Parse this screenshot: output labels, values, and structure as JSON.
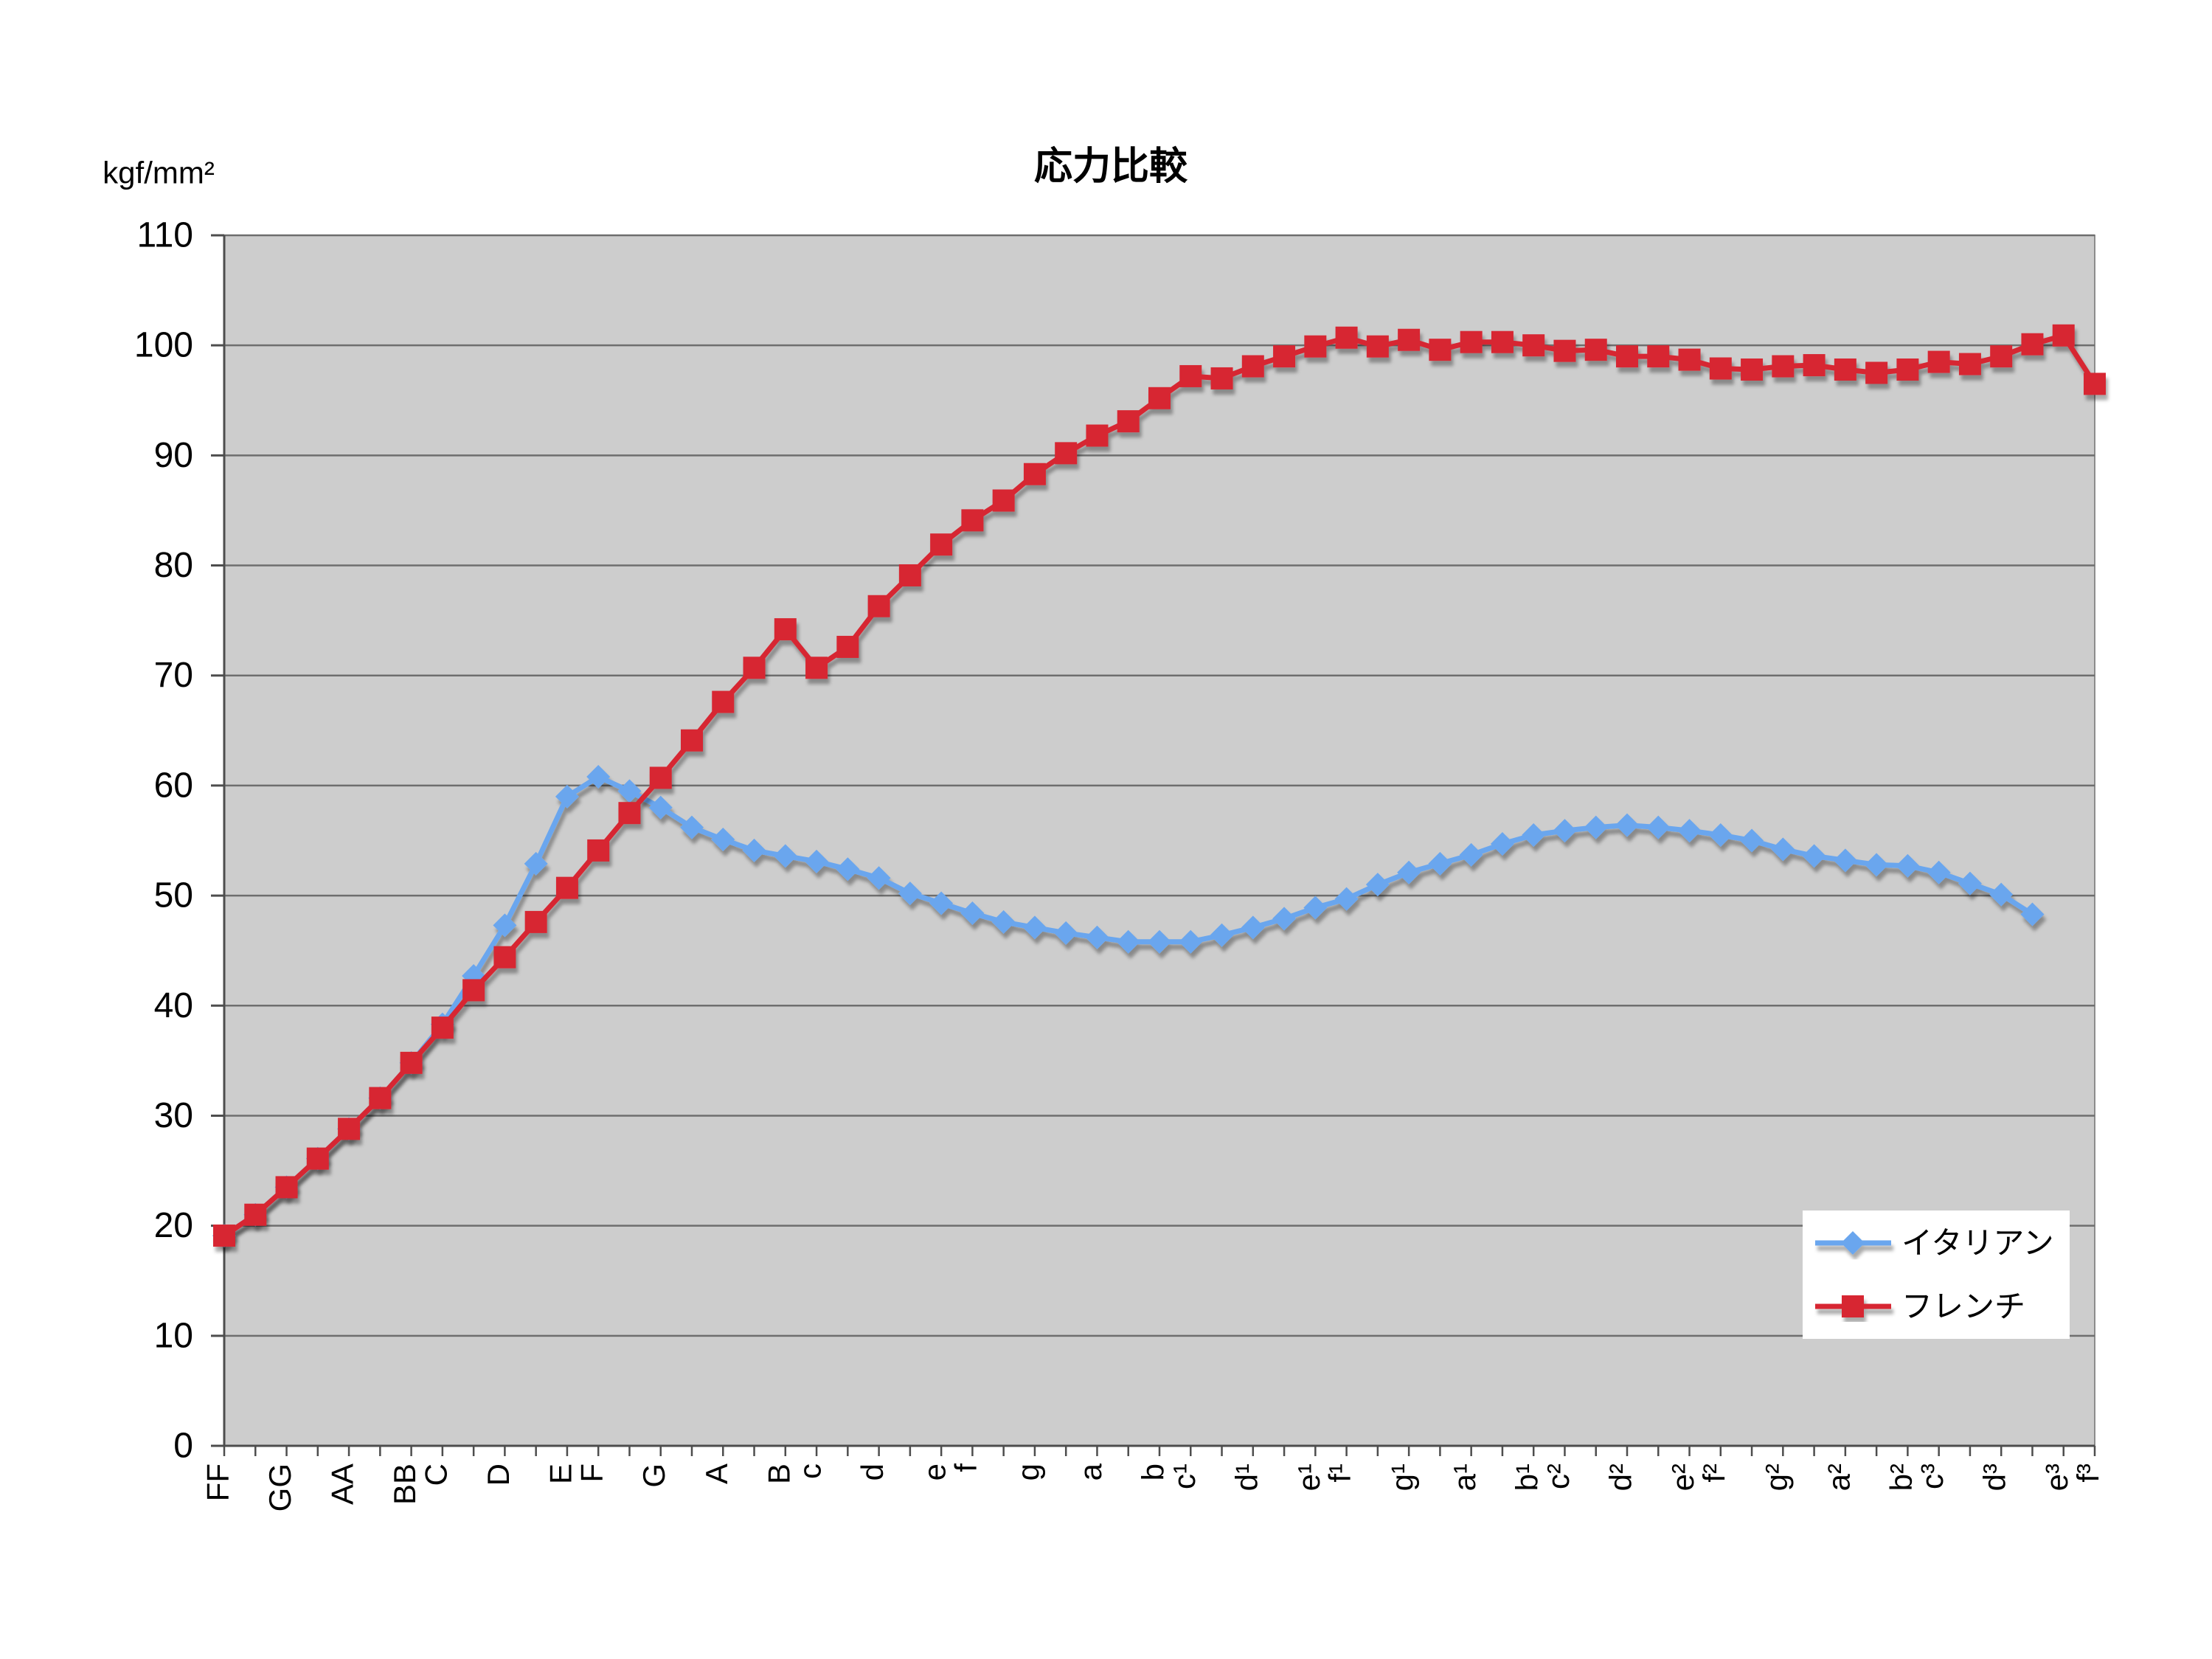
{
  "chart_data": {
    "type": "line",
    "title": "応力比較",
    "ylabel": "kgf/mm²",
    "ylim": [
      0,
      110
    ],
    "yticks": [
      0,
      10,
      20,
      30,
      40,
      50,
      60,
      70,
      80,
      90,
      100,
      110
    ],
    "grid": true,
    "legend_position": "bottom-right",
    "categories": [
      "FF",
      "",
      "GG",
      "",
      "AA",
      "",
      "BB",
      "C",
      "",
      "D",
      "",
      "E",
      "F",
      "",
      "G",
      "",
      "A",
      "",
      "B",
      "c",
      "",
      "d",
      "",
      "e",
      "f",
      "",
      "g",
      "",
      "a",
      "",
      "b",
      "c¹",
      "",
      "d¹",
      "",
      "e¹",
      "f¹",
      "",
      "g¹",
      "",
      "a¹",
      "",
      "b¹",
      "c²",
      "",
      "d²",
      "",
      "e²",
      "f²",
      "",
      "g²",
      "",
      "a²",
      "",
      "b²",
      "c³",
      "",
      "d³",
      "",
      "e³",
      "f³"
    ],
    "series": [
      {
        "name": "イタリアン",
        "color": "#6AA6EE",
        "marker": "diamond",
        "values": [
          19.1,
          21.0,
          23.5,
          26.1,
          28.8,
          31.6,
          34.8,
          38.3,
          42.7,
          47.3,
          52.9,
          59.0,
          60.8,
          59.5,
          58.0,
          56.2,
          55.1,
          54.1,
          53.6,
          53.1,
          52.4,
          51.6,
          50.2,
          49.3,
          48.4,
          47.6,
          47.1,
          46.6,
          46.2,
          45.8,
          45.8,
          45.8,
          46.4,
          47.1,
          47.9,
          48.9,
          49.7,
          51.0,
          52.1,
          52.9,
          53.7,
          54.7,
          55.5,
          55.9,
          56.2,
          56.4,
          56.2,
          55.9,
          55.5,
          55.0,
          54.2,
          53.6,
          53.2,
          52.8,
          52.7,
          52.1,
          51.1,
          50.1,
          48.3,
          null,
          null
        ]
      },
      {
        "name": "フレンチ",
        "color": "#D72833",
        "marker": "square",
        "values": [
          19.1,
          21.0,
          23.5,
          26.1,
          28.8,
          31.6,
          34.8,
          38.0,
          41.4,
          44.4,
          47.6,
          50.7,
          54.1,
          57.5,
          60.7,
          64.1,
          67.6,
          70.7,
          74.2,
          70.7,
          72.6,
          76.3,
          79.1,
          81.9,
          84.1,
          85.9,
          88.3,
          90.2,
          91.8,
          93.1,
          95.2,
          97.2,
          97.0,
          98.1,
          99.0,
          99.9,
          100.7,
          99.9,
          100.5,
          99.6,
          100.3,
          100.3,
          100.0,
          99.5,
          99.6,
          99.0,
          99.0,
          98.7,
          97.9,
          97.8,
          98.1,
          98.2,
          97.8,
          97.5,
          97.8,
          98.5,
          98.3,
          99.0,
          100.1,
          100.9,
          96.5
        ]
      }
    ]
  },
  "colors": {
    "page_background": "#FFFFFF",
    "plot_background": "#CDCDCD",
    "plot_border": "#8C8C8C",
    "gridline": "#6E6E6E",
    "axis": "#4D4D4D",
    "legend_background": "#FFFFFF"
  }
}
